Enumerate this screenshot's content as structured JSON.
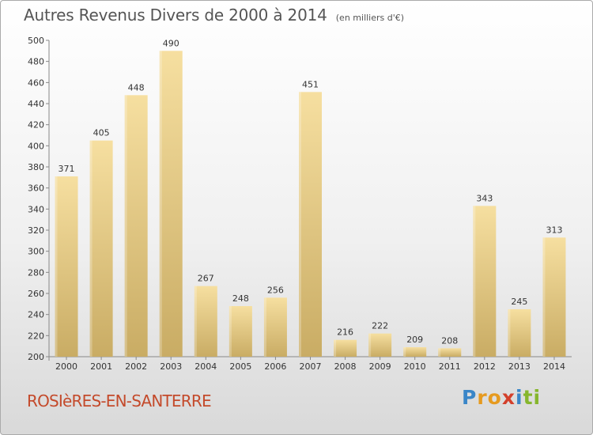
{
  "header": {
    "title": "Autres Revenus Divers de 2000 à 2014",
    "unit": "(en milliers d'€)"
  },
  "footer": {
    "place": "ROSIèRES-EN-SANTERRE",
    "brand_letters": [
      {
        "char": "P",
        "color": "#3a86c8"
      },
      {
        "char": "r",
        "color": "#e69a1f"
      },
      {
        "char": "o",
        "color": "#e69a1f"
      },
      {
        "char": "x",
        "color": "#d3402b"
      },
      {
        "char": "i",
        "color": "#3a86c8"
      },
      {
        "char": "t",
        "color": "#86b62d"
      },
      {
        "char": "i",
        "color": "#86b62d"
      }
    ]
  },
  "colors": {
    "bar_light": "#f6dfa0",
    "bar_dark": "#c9ac64",
    "title": "#555555",
    "place": "#c44a2b"
  },
  "chart_data": {
    "type": "bar",
    "title": "Autres Revenus Divers de 2000 à 2014",
    "subtitle": "(en milliers d'€)",
    "categories": [
      "2000",
      "2001",
      "2002",
      "2003",
      "2004",
      "2005",
      "2006",
      "2007",
      "2008",
      "2009",
      "2010",
      "2011",
      "2012",
      "2013",
      "2014"
    ],
    "values": [
      371,
      405,
      448,
      490,
      267,
      248,
      256,
      451,
      216,
      222,
      209,
      208,
      343,
      245,
      313
    ],
    "ylim": [
      200,
      500
    ],
    "yticks": [
      200,
      220,
      240,
      260,
      280,
      300,
      320,
      340,
      360,
      380,
      400,
      420,
      440,
      460,
      480,
      500
    ],
    "grid": false,
    "data_labels": true
  }
}
